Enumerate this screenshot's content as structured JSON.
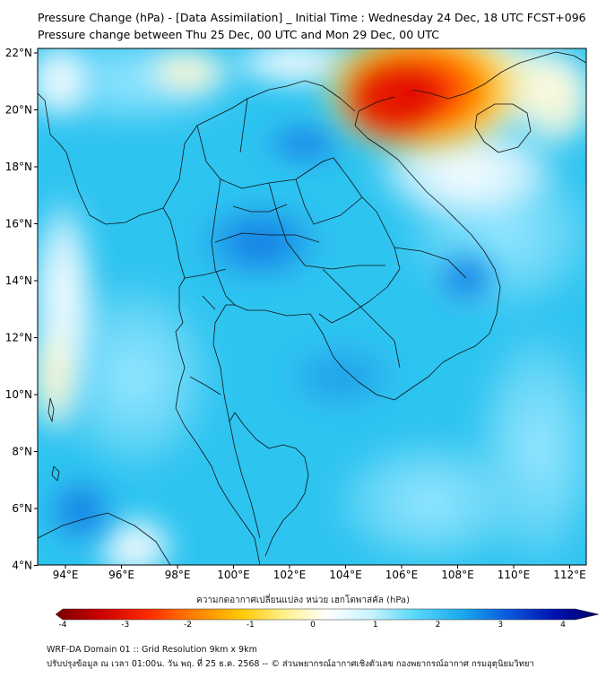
{
  "header": {
    "title_line1": "Pressure Change (hPa) - [Data Assimilation] _ Initial Time : Wednesday 24 Dec, 18 UTC FCST+096",
    "title_line2": "Pressure change between Thu 25 Dec, 00 UTC and Mon 29 Dec, 00 UTC"
  },
  "map": {
    "lon_ticks": [
      "94°E",
      "96°E",
      "98°E",
      "100°E",
      "102°E",
      "104°E",
      "106°E",
      "108°E",
      "110°E",
      "112°E"
    ],
    "lat_ticks": [
      "22°N",
      "20°N",
      "18°N",
      "16°N",
      "14°N",
      "12°N",
      "10°N",
      "8°N",
      "6°N",
      "4°N"
    ],
    "background_color": "#2ec4f0"
  },
  "colorbar": {
    "title": "ความกดอากาศเปลี่ยนแปลง หน่วย เฮกโตพาสคัล (hPa)",
    "tick_labels": [
      "-4",
      "-3",
      "-2",
      "-1",
      "0",
      "1",
      "2",
      "3",
      "4"
    ],
    "colors": [
      "#7a0000",
      "#c80000",
      "#ff2a00",
      "#ff7a00",
      "#ffc800",
      "#fff08a",
      "#ffffff",
      "#c8f4ff",
      "#5ad8f8",
      "#18a8ee",
      "#0a5cdc",
      "#0010b0",
      "#000060"
    ]
  },
  "footer": {
    "line1": "WRF-DA Domain 01 :: Grid Resolution 9km x 9km",
    "line2": "ปรับปรุงข้อมูล ณ เวลา 01:00น. วัน พฤ. ที่ 25 ธ.ค. 2568 -- © ส่วนพยากรณ์อากาศเชิงตัวเลข กองพยากรณ์อากาศ กรมอุตุนิยมวิทยา"
  }
}
